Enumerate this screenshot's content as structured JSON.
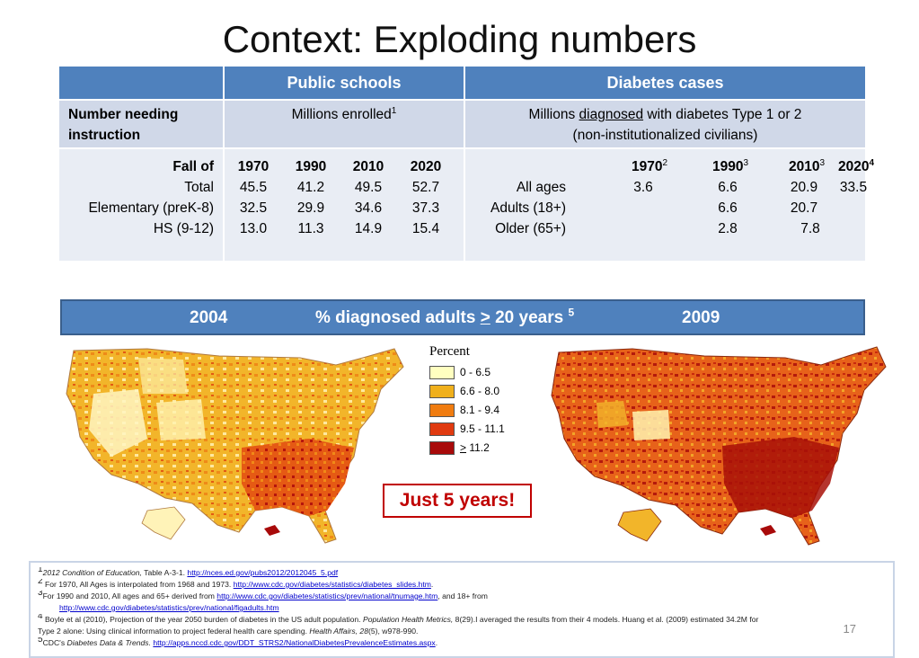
{
  "title": "Context: Exploding numbers",
  "table": {
    "header_public": "Public  schools",
    "header_diabetes": "Diabetes cases",
    "row_label_1": "Number needing",
    "row_label_2": "instruction",
    "public_sub": "Millions enrolled",
    "public_sub_sup": "1",
    "diab_sub_pre": "Millions ",
    "diab_sub_ul": "diagnosed",
    "diab_sub_post": " with diabetes Type 1 or 2",
    "diab_sub_2": "(non-institutionalized civilians)",
    "fall_of": "Fall of",
    "public_years": [
      "1970",
      "1990",
      "2010",
      "2020"
    ],
    "public_rows": [
      {
        "label": "Total",
        "values": [
          "45.5",
          "41.2",
          "49.5",
          "52.7"
        ]
      },
      {
        "label": "Elementary (preK-8)",
        "values": [
          "32.5",
          "29.9",
          "34.6",
          "37.3"
        ]
      },
      {
        "label": "HS (9-12)",
        "values": [
          "13.0",
          "11.3",
          "14.9",
          "15.4"
        ]
      }
    ],
    "diab_years": [
      {
        "year": "1970",
        "sup": "2"
      },
      {
        "year": "1990",
        "sup": "3"
      },
      {
        "year": "2010",
        "sup": "3"
      },
      {
        "year": "2020",
        "sup": "4"
      }
    ],
    "diab_rows": [
      {
        "label": "All ages",
        "values": [
          "3.6",
          "6.6",
          "20.9",
          "33.5"
        ]
      },
      {
        "label": "Adults (18+)",
        "values": [
          "",
          "6.6",
          "20.7",
          ""
        ]
      },
      {
        "label": "Older (65+)",
        "values": [
          "",
          "2.8",
          "7.8",
          ""
        ]
      }
    ]
  },
  "banner": {
    "year_left": "2004",
    "caption_pre": "% diagnosed adults ",
    "caption_gt": ">",
    "caption_post": " 20 years ",
    "caption_sup": "5",
    "year_right": "2009"
  },
  "legend": {
    "title": "Percent",
    "items": [
      {
        "label": "0 - 6.5",
        "color": "#ffffc0"
      },
      {
        "label": "6.6 - 8.0",
        "color": "#f0b01c"
      },
      {
        "label": "8.1 - 9.4",
        "color": "#f07c10"
      },
      {
        "label": "9.5 - 11.1",
        "color": "#e03a10"
      },
      {
        "label": "> 11.2",
        "color": "#a80a0a"
      }
    ]
  },
  "callout": "Just 5 years!",
  "footnotes": {
    "f1_sup": "1",
    "f1_italic": "2012 Condition of Education,",
    "f1_text": " Table A-3-1. ",
    "f1_link": "http://nces.ed.gov/pubs2012/2012045_5.pdf",
    "f2_sup": "2",
    "f2_text": " For 1970, All Ages is interpolated from 1968 and 1973. ",
    "f2_link": "http://www.cdc.gov/diabetes/statistics/diabetes_slides.htm",
    "f2_end": ".",
    "f3_sup": "3",
    "f3_text": "For 1990 and 2010, All ages and 65+ derived from  ",
    "f3_link": "http://www.cdc.gov/diabetes/statistics/prev/national/tnumage.htm",
    "f3_end": ", and 18+ from",
    "f3_link2": "http://www.cdc.gov/diabetes/statistics/prev/national/figadults.htm",
    "f4_sup": "4",
    "f4_text": " Boyle et al (2010), Projection of the year 2050 burden of diabetes in the US adult population. ",
    "f4_italic": "Population Health Metrics,",
    "f4_text2": " 8(29).I averaged the results from their 4 models.  Huang et al. (2009) estimated 34.2M for",
    "f4_line2": "Type 2 alone: Using clinical information to project federal health care spending. ",
    "f4_italic2": "Health Affairs, 28",
    "f4_end": "(5), w978-990.",
    "f5_sup": "5",
    "f5_text": "CDC's ",
    "f5_italic": "Diabetes Data & Trends.",
    "f5_link": "http://apps.nccd.cdc.gov/DDT_STRS2/NationalDiabetesPrevalenceEstimates.aspx",
    "f5_end": "."
  },
  "page_number": "17"
}
